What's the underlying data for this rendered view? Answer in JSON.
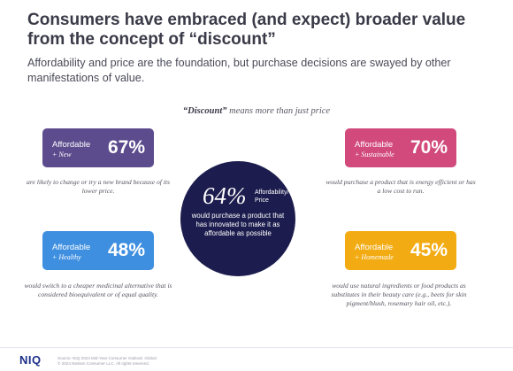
{
  "title": "Consumers have embraced (and expect) broader value from the concept of “discount”",
  "subtitle": "Affordability and price are the foundation, but purchase decisions are swayed by other manifestations of value.",
  "section_heading": {
    "bold": "“Discount”",
    "rest": " means more than just price"
  },
  "cards": [
    {
      "label": "Affordable",
      "modifier": "+ New",
      "percent": "67%",
      "color": "#5c4c8e",
      "description": "are likely to change or try a new brand because of its lower price."
    },
    {
      "label": "Affordable",
      "modifier": "+ Sustainable",
      "percent": "70%",
      "color": "#d24a7c",
      "description": "would purchase a product that is energy efficient or has a low cost to run."
    },
    {
      "label": "Affordable",
      "modifier": "+ Healthy",
      "percent": "48%",
      "color": "#3e8fe0",
      "description": "would switch to a cheaper medicinal alternative that is considered bioequivalent or of equal quality."
    },
    {
      "label": "Affordable",
      "modifier": "+ Homemade",
      "percent": "45%",
      "color": "#f2ab12",
      "description": "would use natural ingredients or food products as substitutes in their beauty care (e.g., beets for skin pigment/blush, rosemary hair oil, etc.)."
    }
  ],
  "center": {
    "percent": "64%",
    "label_line1": "Affordability/",
    "label_line2": "Price",
    "description": "would purchase a product that has innovated to make it as affordable as possible",
    "color": "#1c1c4e"
  },
  "footer": {
    "logo": "NIQ",
    "source_line1": "Source: NIQ 2024 Mid-Year Consumer Outlook: Global",
    "source_line2": "© 2024 Nielsen Consumer LLC. All rights reserved."
  }
}
